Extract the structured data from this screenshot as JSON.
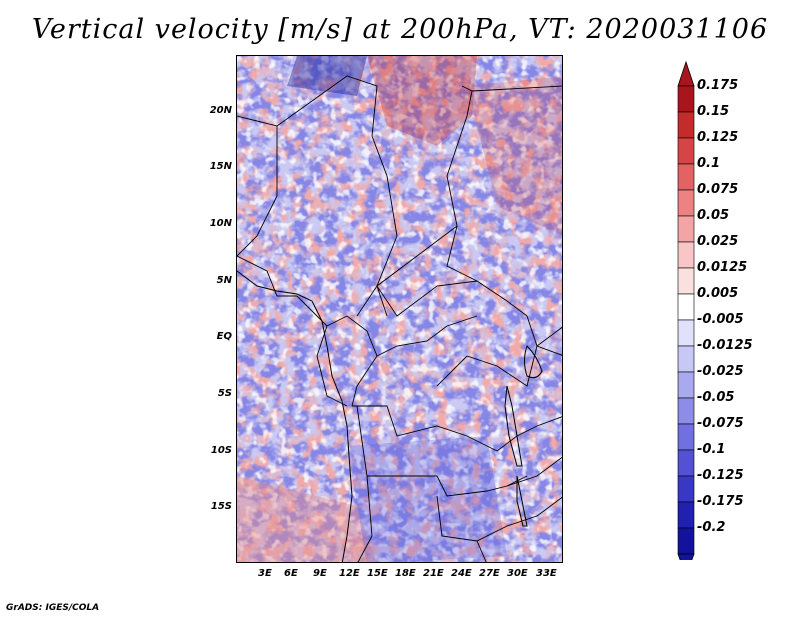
{
  "title": "Vertical velocity [m/s] at 200hPa, VT: 2020031106",
  "map": {
    "lat_labels": [
      "20N",
      "15N",
      "10N",
      "5N",
      "EQ",
      "5S",
      "10S",
      "15S"
    ],
    "lon_labels": [
      "3E",
      "6E",
      "9E",
      "12E",
      "15E",
      "18E",
      "21E",
      "24E",
      "27E",
      "30E",
      "33E"
    ]
  },
  "colorbar": {
    "levels": [
      "0.175",
      "0.15",
      "0.125",
      "0.1",
      "0.075",
      "0.05",
      "0.025",
      "0.0125",
      "0.005",
      "-0.005",
      "-0.0125",
      "-0.025",
      "-0.05",
      "-0.075",
      "-0.1",
      "-0.125",
      "-0.175",
      "-0.2"
    ],
    "colors": [
      "#a8151c",
      "#c42b2b",
      "#d64545",
      "#e26363",
      "#ec8282",
      "#f3a4a4",
      "#f8c6c6",
      "#fbe0e0",
      "#ffffff",
      "#e1e1fb",
      "#c8c8f6",
      "#a9a9f0",
      "#8d8de8",
      "#7070df",
      "#5252d3",
      "#3838c4",
      "#2121b0",
      "#12129a"
    ],
    "top_arrow_color": "#a8151c",
    "bottom_arrow_color": "#12129a"
  },
  "footer": "GrADS: IGES/COLA"
}
